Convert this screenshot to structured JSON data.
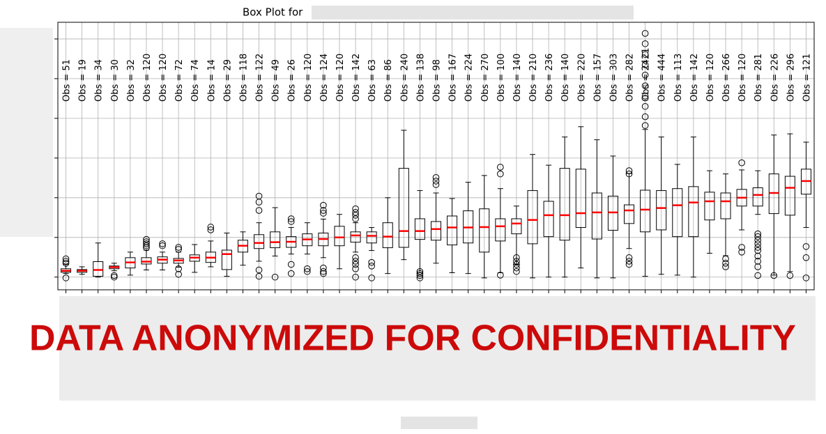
{
  "chart_data": {
    "type": "box",
    "title": "Box Plot for",
    "watermark": "DATA ANONYMIZED FOR CONFIDENTIALITY",
    "categories": [
      null,
      null,
      null,
      null,
      null,
      null,
      null,
      null,
      null,
      null,
      null,
      null,
      null,
      null,
      null,
      null,
      null,
      null,
      null,
      null,
      null,
      null,
      null,
      null,
      null,
      null,
      null,
      null,
      null,
      null,
      null,
      null,
      null,
      null,
      null,
      null,
      null,
      null,
      null,
      null,
      null,
      null,
      null,
      null,
      null,
      null,
      null
    ],
    "xlim": [
      0.5,
      47.5
    ],
    "ylim": [
      -0.32,
      6.42
    ],
    "yticks": [
      0,
      1,
      2,
      3,
      4,
      5,
      6
    ],
    "grid": true,
    "box_color": "#000000",
    "median_color": "#ff0000",
    "boxes": [
      {
        "annotation": "Obs = 51",
        "min": 0.09,
        "q1": 0.12,
        "median": 0.16,
        "q3": 0.21,
        "max": 0.32,
        "outliers": [
          0.46,
          0.4,
          0.35,
          -0.02
        ]
      },
      {
        "annotation": "Obs = 19",
        "min": 0.07,
        "q1": 0.12,
        "median": 0.16,
        "q3": 0.19,
        "max": 0.26,
        "outliers": []
      },
      {
        "annotation": "Obs = 34",
        "min": 0,
        "q1": 0.02,
        "median": 0.18,
        "q3": 0.39,
        "max": 0.86,
        "outliers": []
      },
      {
        "annotation": "Obs = 30",
        "min": 0.16,
        "q1": 0.21,
        "median": 0.25,
        "q3": 0.28,
        "max": 0.35,
        "outliers": [
          0.04,
          0
        ]
      },
      {
        "annotation": "Obs = 32",
        "min": 0.05,
        "q1": 0.23,
        "median": 0.37,
        "q3": 0.49,
        "max": 0.63,
        "outliers": []
      },
      {
        "annotation": "Obs = 120",
        "min": 0.18,
        "q1": 0.33,
        "median": 0.39,
        "q3": 0.49,
        "max": 0.68,
        "outliers": [
          0.95,
          0.89,
          0.84,
          0.79,
          0.74
        ]
      },
      {
        "annotation": "Obs = 120",
        "min": 0.18,
        "q1": 0.35,
        "median": 0.44,
        "q3": 0.51,
        "max": 0.63,
        "outliers": [
          0.84,
          0.79
        ]
      },
      {
        "annotation": "Obs = 72",
        "min": 0.25,
        "q1": 0.35,
        "median": 0.42,
        "q3": 0.47,
        "max": 0.63,
        "outliers": [
          0.75,
          0.7,
          0.21,
          0.07
        ]
      },
      {
        "annotation": "Obs = 74",
        "min": 0.12,
        "q1": 0.4,
        "median": 0.49,
        "q3": 0.56,
        "max": 0.82,
        "outliers": []
      },
      {
        "annotation": "Obs = 14",
        "min": 0.26,
        "q1": 0.37,
        "median": 0.49,
        "q3": 0.63,
        "max": 0.91,
        "outliers": [
          1.26,
          1.19
        ]
      },
      {
        "annotation": "Obs = 29",
        "min": 0.02,
        "q1": 0.19,
        "median": 0.58,
        "q3": 0.68,
        "max": 1.11,
        "outliers": []
      },
      {
        "annotation": "Obs = 118",
        "min": 0.3,
        "q1": 0.63,
        "median": 0.79,
        "q3": 0.93,
        "max": 1.14,
        "outliers": []
      },
      {
        "annotation": "Obs = 122",
        "min": 0.4,
        "q1": 0.72,
        "median": 0.86,
        "q3": 1.07,
        "max": 1.37,
        "outliers": [
          2.04,
          1.89,
          1.68,
          0.18,
          0.02
        ]
      },
      {
        "annotation": "Obs = 49",
        "min": 0.53,
        "q1": 0.74,
        "median": 0.88,
        "q3": 1.14,
        "max": 1.75,
        "outliers": [
          0
        ]
      },
      {
        "annotation": "Obs = 26",
        "min": 0.58,
        "q1": 0.75,
        "median": 0.89,
        "q3": 1.02,
        "max": 1.25,
        "outliers": [
          1.47,
          1.4,
          0.32,
          0.09
        ]
      },
      {
        "annotation": "Obs = 120",
        "min": 0.58,
        "q1": 0.79,
        "median": 0.95,
        "q3": 1.09,
        "max": 1.37,
        "outliers": [
          0.21,
          0.14
        ]
      },
      {
        "annotation": "Obs = 124",
        "min": 0.49,
        "q1": 0.79,
        "median": 0.96,
        "q3": 1.11,
        "max": 1.46,
        "outliers": [
          1.81,
          1.68,
          1.61,
          0.23,
          0.14,
          0.09
        ]
      },
      {
        "annotation": "Obs = 120",
        "min": 0.21,
        "q1": 0.79,
        "median": 1.0,
        "q3": 1.28,
        "max": 1.58,
        "outliers": []
      },
      {
        "annotation": "Obs = 142",
        "min": 0.63,
        "q1": 0.88,
        "median": 1.05,
        "q3": 1.14,
        "max": 1.37,
        "outliers": [
          1.72,
          1.63,
          1.56,
          1.47,
          0.49,
          0.4,
          0.32,
          0.21,
          0
        ]
      },
      {
        "annotation": "Obs = 63",
        "min": 0.67,
        "q1": 0.86,
        "median": 1.04,
        "q3": 1.14,
        "max": 1.25,
        "outliers": [
          0.37,
          0.28,
          -0.02
        ]
      },
      {
        "annotation": "Obs = 86",
        "min": 0.09,
        "q1": 0.74,
        "median": 1.02,
        "q3": 1.37,
        "max": 2.0,
        "outliers": []
      },
      {
        "annotation": "Obs = 240",
        "min": 0.44,
        "q1": 0.75,
        "median": 1.16,
        "q3": 2.74,
        "max": 3.7,
        "outliers": []
      },
      {
        "annotation": "Obs = 138",
        "min": 0.11,
        "q1": 0.95,
        "median": 1.16,
        "q3": 1.47,
        "max": 2.18,
        "outliers": [
          0.14,
          0.09,
          0.04,
          -0.02
        ]
      },
      {
        "annotation": "Obs = 98",
        "min": 0.35,
        "q1": 0.93,
        "median": 1.21,
        "q3": 1.4,
        "max": 2.12,
        "outliers": [
          2.51,
          2.42,
          2.33
        ]
      },
      {
        "annotation": "Obs = 167",
        "min": 0.11,
        "q1": 0.81,
        "median": 1.25,
        "q3": 1.54,
        "max": 1.98,
        "outliers": []
      },
      {
        "annotation": "Obs = 224",
        "min": 0.09,
        "q1": 0.86,
        "median": 1.25,
        "q3": 1.67,
        "max": 2.39,
        "outliers": []
      },
      {
        "annotation": "Obs = 270",
        "min": -0.02,
        "q1": 0.63,
        "median": 1.26,
        "q3": 1.72,
        "max": 2.56,
        "outliers": []
      },
      {
        "annotation": "Obs = 100",
        "min": 0.11,
        "q1": 0.91,
        "median": 1.28,
        "q3": 1.47,
        "max": 2.23,
        "outliers": [
          2.77,
          2.6,
          0.05
        ]
      },
      {
        "annotation": "Obs = 140",
        "min": 0.32,
        "q1": 1.09,
        "median": 1.35,
        "q3": 1.47,
        "max": 1.79,
        "outliers": [
          0.49,
          0.4,
          0.32,
          0.23,
          0.14
        ]
      },
      {
        "annotation": "Obs = 210",
        "min": -0.02,
        "q1": 0.84,
        "median": 1.44,
        "q3": 2.18,
        "max": 3.09,
        "outliers": []
      },
      {
        "annotation": "Obs = 236",
        "min": 0,
        "q1": 1.02,
        "median": 1.56,
        "q3": 1.91,
        "max": 2.82,
        "outliers": []
      },
      {
        "annotation": "Obs = 140",
        "min": 0,
        "q1": 0.93,
        "median": 1.56,
        "q3": 2.74,
        "max": 3.53,
        "outliers": []
      },
      {
        "annotation": "Obs = 220",
        "min": 0.23,
        "q1": 1.25,
        "median": 1.61,
        "q3": 2.72,
        "max": 3.79,
        "outliers": []
      },
      {
        "annotation": "Obs = 157",
        "min": -0.02,
        "q1": 0.96,
        "median": 1.63,
        "q3": 2.12,
        "max": 3.46,
        "outliers": []
      },
      {
        "annotation": "Obs = 303",
        "min": -0.02,
        "q1": 1.18,
        "median": 1.63,
        "q3": 2.04,
        "max": 3.05,
        "outliers": []
      },
      {
        "annotation": "Obs = 282",
        "min": 0.72,
        "q1": 1.35,
        "median": 1.68,
        "q3": 1.82,
        "max": 2.61,
        "outliers": [
          2.68,
          2.6,
          0.49,
          0.4,
          0.32
        ]
      },
      {
        "annotation": "Obs = 2421",
        "min": 0.02,
        "q1": 1.14,
        "median": 1.7,
        "q3": 2.19,
        "max": 3.72,
        "outliers": [
          3.82,
          4.04,
          4.3,
          4.56,
          4.82,
          5.09,
          5.35,
          5.61,
          5.88,
          6.14
        ]
      },
      {
        "annotation": "Obs = 444",
        "min": 0.07,
        "q1": 1.19,
        "median": 1.74,
        "q3": 2.18,
        "max": 3.53,
        "outliers": []
      },
      {
        "annotation": "Obs = 113",
        "min": 0.05,
        "q1": 1.02,
        "median": 1.81,
        "q3": 2.23,
        "max": 2.84,
        "outliers": []
      },
      {
        "annotation": "Obs = 142",
        "min": 0,
        "q1": 1.02,
        "median": 1.88,
        "q3": 2.28,
        "max": 3.53,
        "outliers": []
      },
      {
        "annotation": "Obs = 120",
        "min": 0.6,
        "q1": 1.44,
        "median": 1.91,
        "q3": 2.14,
        "max": 2.68,
        "outliers": []
      },
      {
        "annotation": "Obs = 266",
        "min": 0.54,
        "q1": 1.47,
        "median": 1.91,
        "q3": 2.12,
        "max": 2.6,
        "outliers": [
          0.46,
          0.35,
          0.26
        ]
      },
      {
        "annotation": "Obs = 120",
        "min": 1.19,
        "q1": 1.79,
        "median": 2.0,
        "q3": 2.21,
        "max": 2.7,
        "outliers": [
          2.88,
          0.75,
          0.63
        ]
      },
      {
        "annotation": "Obs = 281",
        "min": 1.58,
        "q1": 1.79,
        "median": 2.07,
        "q3": 2.25,
        "max": 2.68,
        "outliers": [
          1.09,
          1.02,
          0.93,
          0.84,
          0.75,
          0.67,
          0.53,
          0.4,
          0.26,
          0.04
        ]
      },
      {
        "annotation": "Obs = 226",
        "min": 0.05,
        "q1": 1.6,
        "median": 2.12,
        "q3": 2.6,
        "max": 3.58,
        "outliers": [
          0.04
        ]
      },
      {
        "annotation": "Obs = 296",
        "min": 0.14,
        "q1": 1.56,
        "median": 2.25,
        "q3": 2.54,
        "max": 3.61,
        "outliers": [
          0.04
        ]
      },
      {
        "annotation": "Obs = 121",
        "min": 1.25,
        "q1": 2.09,
        "median": 2.42,
        "q3": 2.72,
        "max": 3.4,
        "outliers": [
          0.77,
          0.49,
          -0.02
        ]
      }
    ]
  }
}
